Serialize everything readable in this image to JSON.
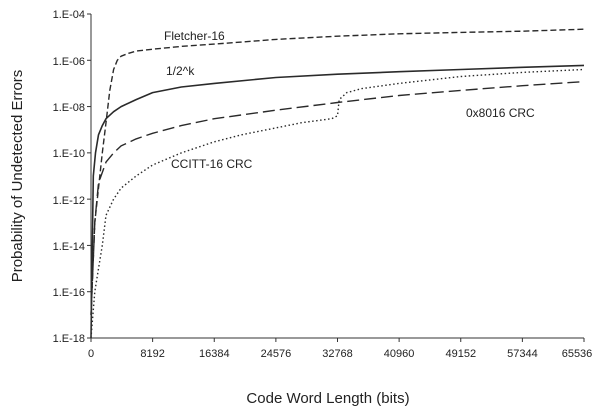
{
  "chart_data": {
    "type": "line",
    "xlabel": "Code Word Length (bits)",
    "ylabel": "Probability of Undetected Errors",
    "xlim": [
      0,
      65536
    ],
    "ylim_log10": [
      -18,
      -4
    ],
    "yscale": "log",
    "grid": false,
    "x_ticks": [
      "0",
      "8192",
      "16384",
      "24576",
      "32768",
      "40960",
      "49152",
      "57344",
      "65536"
    ],
    "y_ticks": [
      "1.E-18",
      "1.E-16",
      "1.E-14",
      "1.E-12",
      "1.E-10",
      "1.E-08",
      "1.E-06",
      "1.E-04"
    ],
    "series": [
      {
        "name": "Fletcher-16",
        "style": "dashed",
        "x": [
          0,
          500,
          1000,
          1500,
          2000,
          2500,
          3000,
          3500,
          4000,
          5000,
          6000,
          8192,
          12000,
          16384,
          24576,
          32768,
          40960,
          49152,
          57344,
          65536
        ],
        "y": [
          1e-17,
          1e-13,
          3e-12,
          1e-10,
          2e-09,
          5e-08,
          4e-07,
          1e-06,
          1.5e-06,
          2e-06,
          2.5e-06,
          3e-06,
          4e-06,
          5e-06,
          8e-06,
          1.1e-05,
          1.4e-05,
          1.6e-05,
          1.8e-05,
          2.2e-05
        ]
      },
      {
        "name": "1/2^k",
        "style": "solid",
        "x": [
          0,
          300,
          600,
          1000,
          1500,
          2000,
          3000,
          4000,
          6000,
          8192,
          12000,
          16384,
          24576,
          32768,
          40960,
          49152,
          57344,
          65536
        ],
        "y": [
          1e-18,
          1e-11,
          1e-10,
          6e-10,
          1.5e-09,
          3e-09,
          6e-09,
          1e-08,
          2e-08,
          4e-08,
          7e-08,
          1e-07,
          1.8e-07,
          2.5e-07,
          3.2e-07,
          4e-07,
          5e-07,
          6e-07
        ]
      },
      {
        "name": "0x8016 CRC",
        "style": "long-dashed",
        "x": [
          0,
          500,
          1000,
          2000,
          3000,
          4000,
          6000,
          8192,
          12000,
          16384,
          24576,
          32768,
          40960,
          49152,
          57344,
          65536
        ],
        "y": [
          1e-17,
          1e-13,
          5e-12,
          4e-11,
          1e-10,
          2e-10,
          4e-10,
          7e-10,
          1.5e-09,
          3e-09,
          7e-09,
          1.5e-08,
          3e-08,
          5e-08,
          8e-08,
          1.2e-07
        ]
      },
      {
        "name": "CCITT-16 CRC",
        "style": "dotted",
        "x": [
          0,
          500,
          1000,
          1500,
          2000,
          3000,
          4000,
          6000,
          8192,
          12000,
          16384,
          20000,
          24576,
          28000,
          32000,
          32768,
          33000,
          34000,
          36000,
          40960,
          49152,
          57344,
          65536
        ],
        "y": [
          1e-18,
          1e-16,
          1e-15,
          1e-14,
          2e-13,
          1e-12,
          3e-12,
          1e-11,
          3e-11,
          1e-10,
          3e-10,
          6e-10,
          1.2e-09,
          2e-09,
          3e-09,
          4e-09,
          2e-08,
          4e-08,
          6e-08,
          1e-07,
          2e-07,
          3e-07,
          4e-07
        ]
      }
    ],
    "annotations": [
      "Fletcher-16",
      "1/2^k",
      "0x8016 CRC",
      "CCITT-16 CRC"
    ]
  }
}
